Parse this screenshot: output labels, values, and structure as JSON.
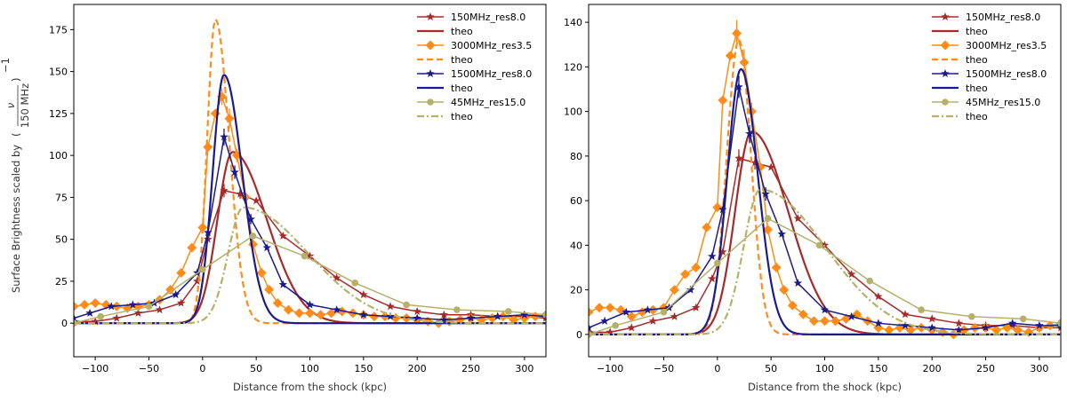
{
  "figure": {
    "ylabel_prefix": "Surface Brightness scaled by",
    "ylabel_frac_num": "ν",
    "ylabel_frac_den": "150 MHz",
    "ylabel_exponent": "−1"
  },
  "chart_data": [
    {
      "type": "line",
      "xlabel": "Distance from the shock (kpc)",
      "xlim": [
        -120,
        320
      ],
      "ylim": [
        -20,
        190
      ],
      "xticks": [
        -100,
        -50,
        0,
        50,
        100,
        150,
        200,
        250,
        300
      ],
      "yticks": [
        0,
        25,
        50,
        75,
        100,
        125,
        150,
        175
      ],
      "legend": [
        "150MHz_res8.0",
        "theo",
        "3000MHz_res3.5",
        "theo",
        "1500MHz_res8.0",
        "theo",
        "45MHz_res15.0",
        "theo"
      ],
      "series": [
        {
          "name": "150MHz_res8.0",
          "kind": "data",
          "color": "#a52a2a",
          "marker": "star",
          "x": [
            -120,
            -100,
            -80,
            -60,
            -40,
            -20,
            -5,
            5,
            20,
            35,
            50,
            75,
            100,
            125,
            150,
            175,
            200,
            225,
            250,
            275,
            300,
            320
          ],
          "y": [
            1,
            1,
            3,
            6,
            8,
            12,
            25,
            50,
            79,
            77,
            73,
            52,
            40,
            27,
            17,
            10,
            7,
            5,
            5,
            4,
            4,
            3
          ],
          "err": [
            0,
            0,
            0,
            0,
            0,
            0,
            0,
            0,
            4,
            3,
            0,
            0,
            0,
            0,
            0,
            0,
            0,
            0,
            0,
            0,
            0,
            0
          ]
        },
        {
          "name": "theo",
          "kind": "theo",
          "color": "#a52a2a",
          "dash": "",
          "peak": 102,
          "center": 28,
          "wl": 20,
          "wr": 45,
          "base": 0
        },
        {
          "name": "3000MHz_res3.5",
          "kind": "data",
          "color": "#ff8c1a",
          "marker": "diamond",
          "x": [
            -120,
            -110,
            -100,
            -90,
            -80,
            -70,
            -60,
            -50,
            -40,
            -30,
            -20,
            -10,
            0,
            5,
            12,
            18,
            25,
            32,
            40,
            47,
            55,
            62,
            70,
            80,
            90,
            100,
            110,
            120,
            130,
            140,
            150,
            160,
            170,
            180,
            190,
            200,
            210,
            220,
            230,
            240,
            250,
            260,
            270,
            280,
            290,
            300,
            310,
            320
          ],
          "y": [
            10,
            11,
            12,
            11,
            10,
            9,
            10,
            11,
            14,
            20,
            30,
            45,
            57,
            105,
            125,
            135,
            122,
            100,
            75,
            47,
            30,
            20,
            12,
            8,
            6,
            6,
            5,
            6,
            7,
            6,
            5,
            4,
            4,
            3,
            3,
            2,
            1,
            0,
            1,
            2,
            3,
            2,
            3,
            4,
            2,
            3,
            4,
            5
          ],
          "err": [
            0,
            0,
            0,
            0,
            0,
            0,
            0,
            0,
            0,
            0,
            0,
            0,
            0,
            0,
            0,
            5,
            6,
            4,
            0,
            0,
            0,
            0,
            0,
            0,
            0,
            0,
            0,
            0,
            0,
            0,
            0,
            0,
            0,
            0,
            0,
            0,
            0,
            0,
            0,
            0,
            0,
            0,
            0,
            0,
            0,
            0,
            0,
            0
          ]
        },
        {
          "name": "theo",
          "kind": "theo",
          "color": "#ff8c1a",
          "dash": "7,4",
          "peak": 181,
          "center": 12,
          "wl": 11,
          "wr": 18,
          "base": 0
        },
        {
          "name": "1500MHz_res8.0",
          "kind": "data",
          "color": "#1a1a8c",
          "marker": "star",
          "x": [
            -120,
            -105,
            -85,
            -65,
            -45,
            -25,
            -5,
            5,
            20,
            30,
            45,
            60,
            75,
            100,
            125,
            150,
            175,
            200,
            225,
            250,
            275,
            300,
            320
          ],
          "y": [
            3,
            6,
            10,
            11,
            12,
            17,
            30,
            54,
            111,
            90,
            62,
            45,
            23,
            11,
            8,
            5,
            4,
            3,
            2,
            3,
            4,
            5,
            4
          ],
          "err": [
            0,
            0,
            0,
            0,
            0,
            0,
            0,
            0,
            5,
            4,
            3,
            0,
            0,
            0,
            0,
            0,
            0,
            0,
            0,
            0,
            0,
            0,
            0
          ]
        },
        {
          "name": "theo",
          "kind": "theo",
          "color": "#1a1a8c",
          "dash": "",
          "peak": 148,
          "center": 20,
          "wl": 15,
          "wr": 24,
          "base": 0
        },
        {
          "name": "45MHz_res15.0",
          "kind": "data",
          "color": "#b5b06a",
          "marker": "circle",
          "x": [
            -120,
            -95,
            -50,
            0,
            47,
            95,
            142,
            190,
            237,
            285,
            320
          ],
          "y": [
            0,
            4,
            10,
            32,
            52,
            40,
            24,
            11,
            8,
            7,
            5
          ],
          "err": [
            0,
            0,
            0,
            0,
            0,
            0,
            0,
            0,
            0,
            0,
            0
          ]
        },
        {
          "name": "theo",
          "kind": "theo",
          "color": "#b5b06a",
          "dash": "8,3,2,3",
          "peak": 69,
          "center": 38,
          "wl": 20,
          "wr": 85,
          "base": 0
        }
      ]
    },
    {
      "type": "line",
      "xlabel": "Distance from the shock (kpc)",
      "xlim": [
        -120,
        320
      ],
      "ylim": [
        -10,
        148
      ],
      "xticks": [
        -100,
        -50,
        0,
        50,
        100,
        150,
        200,
        250,
        300
      ],
      "yticks": [
        0,
        20,
        40,
        60,
        80,
        100,
        120,
        140
      ],
      "legend": [
        "150MHz_res8.0",
        "theo",
        "3000MHz_res3.5",
        "theo",
        "1500MHz_res8.0",
        "theo",
        "45MHz_res15.0",
        "theo"
      ],
      "series": [
        {
          "name": "150MHz_res8.0",
          "kind": "data",
          "color": "#a52a2a",
          "marker": "star",
          "x": [
            -120,
            -100,
            -80,
            -60,
            -40,
            -20,
            -5,
            5,
            20,
            35,
            50,
            75,
            100,
            125,
            150,
            175,
            200,
            225,
            250,
            275,
            300,
            320
          ],
          "y": [
            1,
            1,
            3,
            6,
            8,
            12,
            25,
            37,
            79,
            77,
            75,
            52,
            40,
            27,
            17,
            9,
            7,
            5,
            4,
            4,
            3,
            3
          ],
          "err": [
            0,
            0,
            0,
            0,
            0,
            0,
            0,
            0,
            4,
            3,
            0,
            0,
            0,
            0,
            0,
            0,
            0,
            0,
            0,
            0,
            0,
            0
          ]
        },
        {
          "name": "theo",
          "kind": "theo",
          "color": "#a52a2a",
          "dash": "",
          "peak": 91,
          "center": 32,
          "wl": 22,
          "wr": 48,
          "base": 0
        },
        {
          "name": "3000MHz_res3.5",
          "kind": "data",
          "color": "#ff8c1a",
          "marker": "diamond",
          "x": [
            -120,
            -110,
            -100,
            -90,
            -80,
            -70,
            -60,
            -50,
            -40,
            -30,
            -20,
            -10,
            0,
            5,
            12,
            18,
            25,
            32,
            40,
            47,
            55,
            62,
            70,
            80,
            90,
            100,
            110,
            120,
            130,
            140,
            150,
            160,
            170,
            180,
            190,
            200,
            210,
            220,
            230,
            240,
            250,
            260,
            270,
            280,
            290,
            300,
            310,
            320
          ],
          "y": [
            10,
            12,
            12,
            11,
            8,
            10,
            11,
            12,
            20,
            27,
            30,
            48,
            57,
            105,
            125,
            135,
            122,
            100,
            75,
            47,
            30,
            20,
            13,
            9,
            6,
            6,
            6,
            7,
            9,
            6,
            3,
            2,
            3,
            2,
            3,
            2,
            1,
            0,
            2,
            3,
            3,
            2,
            3,
            2,
            1,
            3,
            4,
            5
          ],
          "err": [
            0,
            0,
            0,
            0,
            0,
            0,
            0,
            0,
            0,
            0,
            0,
            0,
            0,
            0,
            0,
            6,
            6,
            4,
            0,
            0,
            0,
            0,
            0,
            0,
            0,
            0,
            0,
            0,
            0,
            0,
            0,
            0,
            0,
            0,
            0,
            0,
            0,
            0,
            0,
            0,
            0,
            0,
            0,
            0,
            0,
            0,
            0,
            0
          ]
        },
        {
          "name": "theo",
          "kind": "theo",
          "color": "#ff8c1a",
          "dash": "7,4",
          "peak": 132,
          "center": 20,
          "wl": 16,
          "wr": 16,
          "base": 0
        },
        {
          "name": "1500MHz_res8.0",
          "kind": "data",
          "color": "#1a1a8c",
          "marker": "star",
          "x": [
            -120,
            -105,
            -85,
            -65,
            -45,
            -25,
            -5,
            5,
            20,
            30,
            45,
            60,
            75,
            100,
            125,
            150,
            175,
            200,
            225,
            250,
            275,
            300,
            320
          ],
          "y": [
            3,
            6,
            10,
            11,
            12,
            20,
            35,
            56,
            111,
            90,
            63,
            45,
            23,
            11,
            8,
            5,
            4,
            3,
            2,
            3,
            5,
            4,
            4
          ],
          "err": [
            0,
            0,
            0,
            0,
            0,
            0,
            0,
            0,
            5,
            4,
            3,
            0,
            0,
            0,
            0,
            0,
            0,
            0,
            0,
            0,
            0,
            0,
            0
          ]
        },
        {
          "name": "theo",
          "kind": "theo",
          "color": "#1a1a8c",
          "dash": "",
          "peak": 119,
          "center": 22,
          "wl": 18,
          "wr": 22,
          "base": 0
        },
        {
          "name": "45MHz_res15.0",
          "kind": "data",
          "color": "#b5b06a",
          "marker": "circle",
          "x": [
            -120,
            -95,
            -50,
            0,
            47,
            95,
            142,
            190,
            237,
            285,
            320
          ],
          "y": [
            0,
            4,
            10,
            32,
            52,
            40,
            24,
            11,
            8,
            7,
            5
          ],
          "err": [
            0,
            0,
            0,
            0,
            0,
            0,
            0,
            0,
            0,
            0,
            0
          ]
        },
        {
          "name": "theo",
          "kind": "theo",
          "color": "#b5b06a",
          "dash": "8,3,2,3",
          "peak": 65,
          "center": 40,
          "wl": 22,
          "wr": 85,
          "base": 0
        }
      ]
    }
  ]
}
